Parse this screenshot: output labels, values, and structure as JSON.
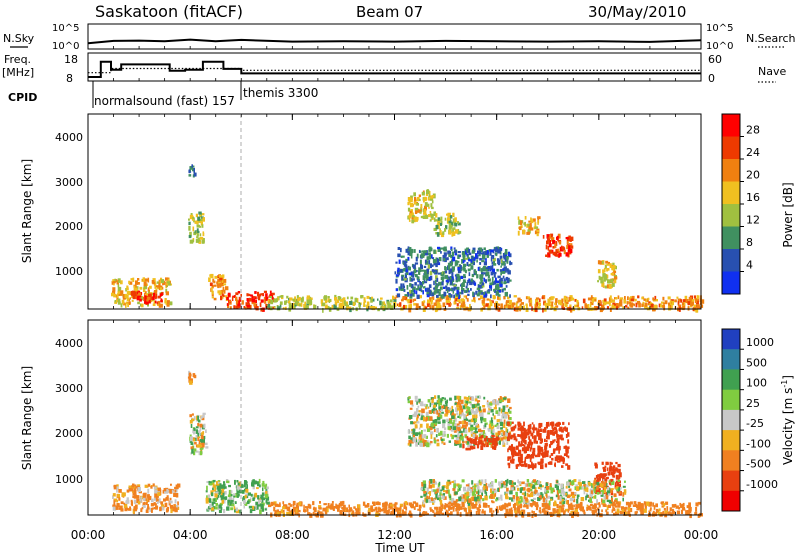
{
  "header": {
    "station": "Saskatoon (fitACF)",
    "beam": "Beam 07",
    "date": "30/May/2010"
  },
  "top_panels": {
    "nsky_label": "N.Sky",
    "nsky_ticks": [
      "10^5",
      "10^0"
    ],
    "nsearch_label": "N.Search",
    "nsearch_ticks": [
      "10^5",
      "10^0"
    ],
    "freq_label_1": "Freq.",
    "freq_label_2": "[MHz]",
    "freq_ticks": [
      "18",
      "8"
    ],
    "nave_label": "Nave",
    "nave_ticks": [
      "60",
      "0"
    ],
    "cpid_label": "CPID",
    "cpid_segments": [
      {
        "label": "normalsound (fast) 157",
        "start_hour": 0.9,
        "end_hour": 6.0
      },
      {
        "label": "themis 3300",
        "start_hour": 6.0,
        "end_hour": 24.0
      }
    ]
  },
  "power_panel": {
    "ylabel": "Slant Range [km]",
    "yticks": [
      "1000",
      "2000",
      "3000",
      "4000"
    ],
    "colorbar_label": "Power [dB]",
    "colorbar_ticks": [
      "28",
      "24",
      "20",
      "16",
      "12",
      "8",
      "4"
    ],
    "colorbar_colors": [
      "#ff0000",
      "#ee3a00",
      "#f08010",
      "#f0c020",
      "#a0c040",
      "#409060",
      "#2850b0",
      "#1030f0"
    ]
  },
  "velocity_panel": {
    "ylabel": "Slant Range [km]",
    "yticks": [
      "1000",
      "2000",
      "3000",
      "4000"
    ],
    "colorbar_label_main": "Velocity [m s",
    "colorbar_label_sup": "-1",
    "colorbar_label_end": "]",
    "colorbar_ticks": [
      "1000",
      "500",
      "100",
      "25",
      "-25",
      "-100",
      "-500",
      "-1000"
    ],
    "colorbar_colors": [
      "#2040c0",
      "#2f7fa0",
      "#40a050",
      "#80cc40",
      "#c8c8c8",
      "#f0b020",
      "#f08020",
      "#e84010",
      "#f00000"
    ]
  },
  "time_axis": {
    "xlabel": "Time UT",
    "xticks": [
      "00:00",
      "04:00",
      "08:00",
      "12:00",
      "16:00",
      "20:00",
      "00:00"
    ]
  },
  "chart_data": [
    {
      "type": "line",
      "title": "N.Sky / N.Search",
      "x_unit": "hours UT",
      "series": [
        {
          "name": "N.Sky",
          "x": [
            0,
            1,
            2,
            3,
            4,
            5,
            6,
            8,
            10,
            12,
            14,
            16,
            18,
            20,
            22,
            24
          ],
          "values_log10": [
            0.5,
            1.2,
            1.3,
            1.1,
            1.6,
            1.1,
            1.5,
            1.0,
            1.1,
            1.0,
            1.2,
            1.1,
            1.0,
            1.1,
            0.9,
            1.4
          ]
        }
      ]
    },
    {
      "type": "line",
      "title": "Freq. [MHz] / Nave",
      "x_unit": "hours UT",
      "series": [
        {
          "name": "Freq.",
          "x": [
            0.0,
            0.5,
            0.5,
            0.9,
            0.9,
            1.3,
            1.3,
            3.2,
            3.2,
            3.8,
            3.8,
            4.5,
            4.5,
            5.3,
            5.3,
            6.0,
            6.0,
            24.0
          ],
          "values": [
            8,
            8,
            16.5,
            16.5,
            12,
            12,
            15,
            15,
            11.5,
            11.5,
            12,
            12,
            16.5,
            16.5,
            12.5,
            12.5,
            10,
            10
          ]
        },
        {
          "name": "Nave",
          "x": [
            0.0,
            0.9,
            0.9,
            6.0,
            6.0,
            24.0
          ],
          "values": [
            18,
            18,
            30,
            30,
            25,
            25
          ]
        }
      ]
    },
    {
      "type": "heatmap",
      "title": "Power",
      "x_unit": "hours UT",
      "y_unit": "km",
      "xlim": [
        0,
        24
      ],
      "ylim": [
        180,
        4600
      ],
      "colorbar_range": [
        0,
        30
      ],
      "patches": [
        {
          "hours": [
            0.9,
            3.2
          ],
          "km": [
            300,
            900
          ],
          "db": 18
        },
        {
          "hours": [
            1.5,
            2.9
          ],
          "km": [
            350,
            600
          ],
          "db": 28
        },
        {
          "hours": [
            3.9,
            4.5
          ],
          "km": [
            1700,
            2400
          ],
          "db": 14
        },
        {
          "hours": [
            3.9,
            4.2
          ],
          "km": [
            3200,
            3500
          ],
          "db": 6
        },
        {
          "hours": [
            4.7,
            5.4
          ],
          "km": [
            400,
            1000
          ],
          "db": 20
        },
        {
          "hours": [
            5.4,
            7.2
          ],
          "km": [
            200,
            600
          ],
          "db": 26
        },
        {
          "hours": [
            7.0,
            12.0
          ],
          "km": [
            200,
            500
          ],
          "db": 14
        },
        {
          "hours": [
            12.5,
            13.5
          ],
          "km": [
            2200,
            2900
          ],
          "db": 16
        },
        {
          "hours": [
            13.5,
            14.5
          ],
          "km": [
            1900,
            2400
          ],
          "db": 14
        },
        {
          "hours": [
            16.8,
            17.6
          ],
          "km": [
            1900,
            2300
          ],
          "db": 18
        },
        {
          "hours": [
            17.8,
            18.9
          ],
          "km": [
            1400,
            1900
          ],
          "db": 26
        },
        {
          "hours": [
            19.9,
            20.6
          ],
          "km": [
            700,
            1300
          ],
          "db": 16
        },
        {
          "hours": [
            12.0,
            24.0
          ],
          "km": [
            200,
            500
          ],
          "db": 20
        },
        {
          "hours": [
            12.0,
            16.5
          ],
          "km": [
            500,
            1600
          ],
          "db": 6
        }
      ]
    },
    {
      "type": "heatmap",
      "title": "Velocity",
      "x_unit": "hours UT",
      "y_unit": "km",
      "xlim": [
        0,
        24
      ],
      "ylim": [
        180,
        4600
      ],
      "colorbar_range": [
        -1000,
        1000
      ],
      "patches": [
        {
          "hours": [
            0.9,
            3.5
          ],
          "km": [
            300,
            900
          ],
          "ms": -100
        },
        {
          "hours": [
            3.9,
            4.6
          ],
          "km": [
            1600,
            2500
          ],
          "ms": 0
        },
        {
          "hours": [
            3.9,
            4.2
          ],
          "km": [
            3200,
            3500
          ],
          "ms": -100
        },
        {
          "hours": [
            4.6,
            7.0
          ],
          "km": [
            300,
            1000
          ],
          "ms": 60
        },
        {
          "hours": [
            7.0,
            12.0
          ],
          "km": [
            200,
            500
          ],
          "ms": -150
        },
        {
          "hours": [
            12.5,
            16.5
          ],
          "km": [
            1800,
            2900
          ],
          "ms": 0
        },
        {
          "hours": [
            14.6,
            16.0
          ],
          "km": [
            1700,
            2000
          ],
          "ms": -400
        },
        {
          "hours": [
            16.4,
            18.8
          ],
          "km": [
            1300,
            2300
          ],
          "ms": -500
        },
        {
          "hours": [
            19.8,
            20.8
          ],
          "km": [
            700,
            1400
          ],
          "ms": -500
        },
        {
          "hours": [
            12.0,
            24.0
          ],
          "km": [
            200,
            500
          ],
          "ms": -150
        },
        {
          "hours": [
            13.0,
            21.0
          ],
          "km": [
            500,
            1000
          ],
          "ms": 0
        }
      ]
    }
  ]
}
